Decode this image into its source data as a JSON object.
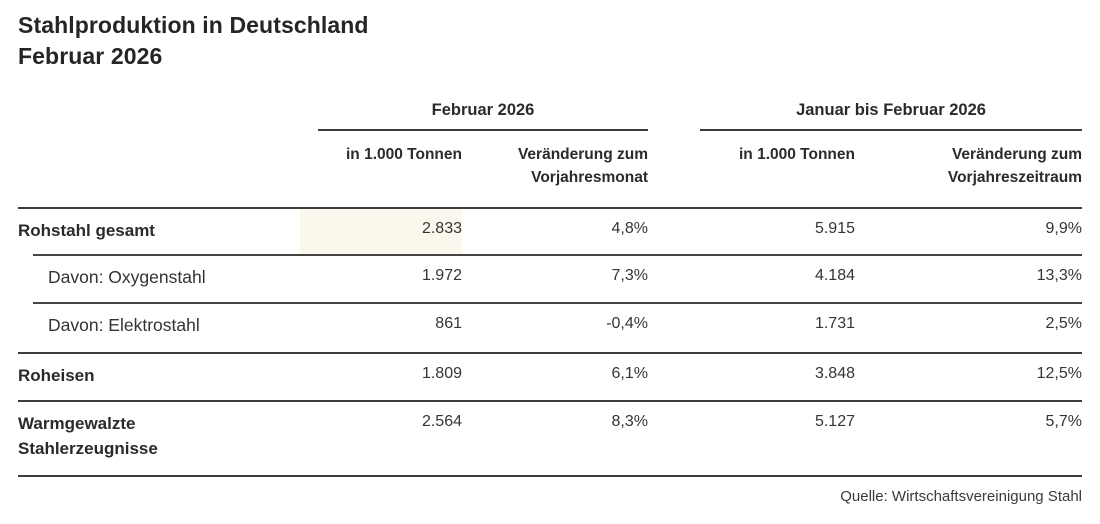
{
  "title": {
    "line1": "Stahlproduktion in Deutschland",
    "line2": "Februar 2026"
  },
  "chart_data": {
    "type": "table",
    "title": "Stahlproduktion in Deutschland Februar 2026",
    "column_groups": [
      "Februar 2026",
      "Januar bis Februar 2026"
    ],
    "columns": [
      "",
      "in 1.000 Tonnen",
      "Veränderung zum Vorjahresmonat",
      "in 1.000 Tonnen",
      "Veränderung zum Vorjahreszeitraum"
    ],
    "rows": [
      [
        "Rohstahl gesamt",
        "2.833",
        "4,8%",
        "5.915",
        "9,9%"
      ],
      [
        "Davon: Oxygenstahl",
        "1.972",
        "7,3%",
        "4.184",
        "13,3%"
      ],
      [
        "Davon: Elektrostahl",
        "861",
        "-0,4%",
        "1.731",
        "2,5%"
      ],
      [
        "Roheisen",
        "1.809",
        "6,1%",
        "3.848",
        "12,5%"
      ],
      [
        "Warmgewalzte Stahlerzeugnisse",
        "2.564",
        "8,3%",
        "5.127",
        "5,7%"
      ]
    ],
    "source": "Quelle: Wirtschaftsvereinigung Stahl"
  },
  "table": {
    "groups": {
      "feb": "Februar 2026",
      "ytd": "Januar bis Februar 2026"
    },
    "subheaders": {
      "feb_tonnes": "in 1.000 Tonnen",
      "feb_change": "Veränderung zum Vorjahresmonat",
      "ytd_tonnes": "in 1.000 Tonnen",
      "ytd_change": "Veränderung zum Vorjahreszeitraum"
    },
    "rows": [
      {
        "label": "Rohstahl gesamt",
        "values": [
          "2.833",
          "4,8%",
          "5.915",
          "9,9%"
        ]
      },
      {
        "label": "Davon: Oxygenstahl",
        "values": [
          "1.972",
          "7,3%",
          "4.184",
          "13,3%"
        ]
      },
      {
        "label": "Davon: Elektrostahl",
        "values": [
          "861",
          "-0,4%",
          "1.731",
          "2,5%"
        ]
      },
      {
        "label": "Roheisen",
        "values": [
          "1.809",
          "6,1%",
          "3.848",
          "12,5%"
        ]
      },
      {
        "label": "Warmgewalzte Stahlerzeugnisse",
        "values": [
          "2.564",
          "8,3%",
          "5.127",
          "5,7%"
        ]
      }
    ],
    "source": "Quelle: Wirtschaftsvereinigung Stahl"
  },
  "colors": {
    "text": "#2c2b2a",
    "rule": "#3d3c3b",
    "highlight": "#faf8ec"
  }
}
